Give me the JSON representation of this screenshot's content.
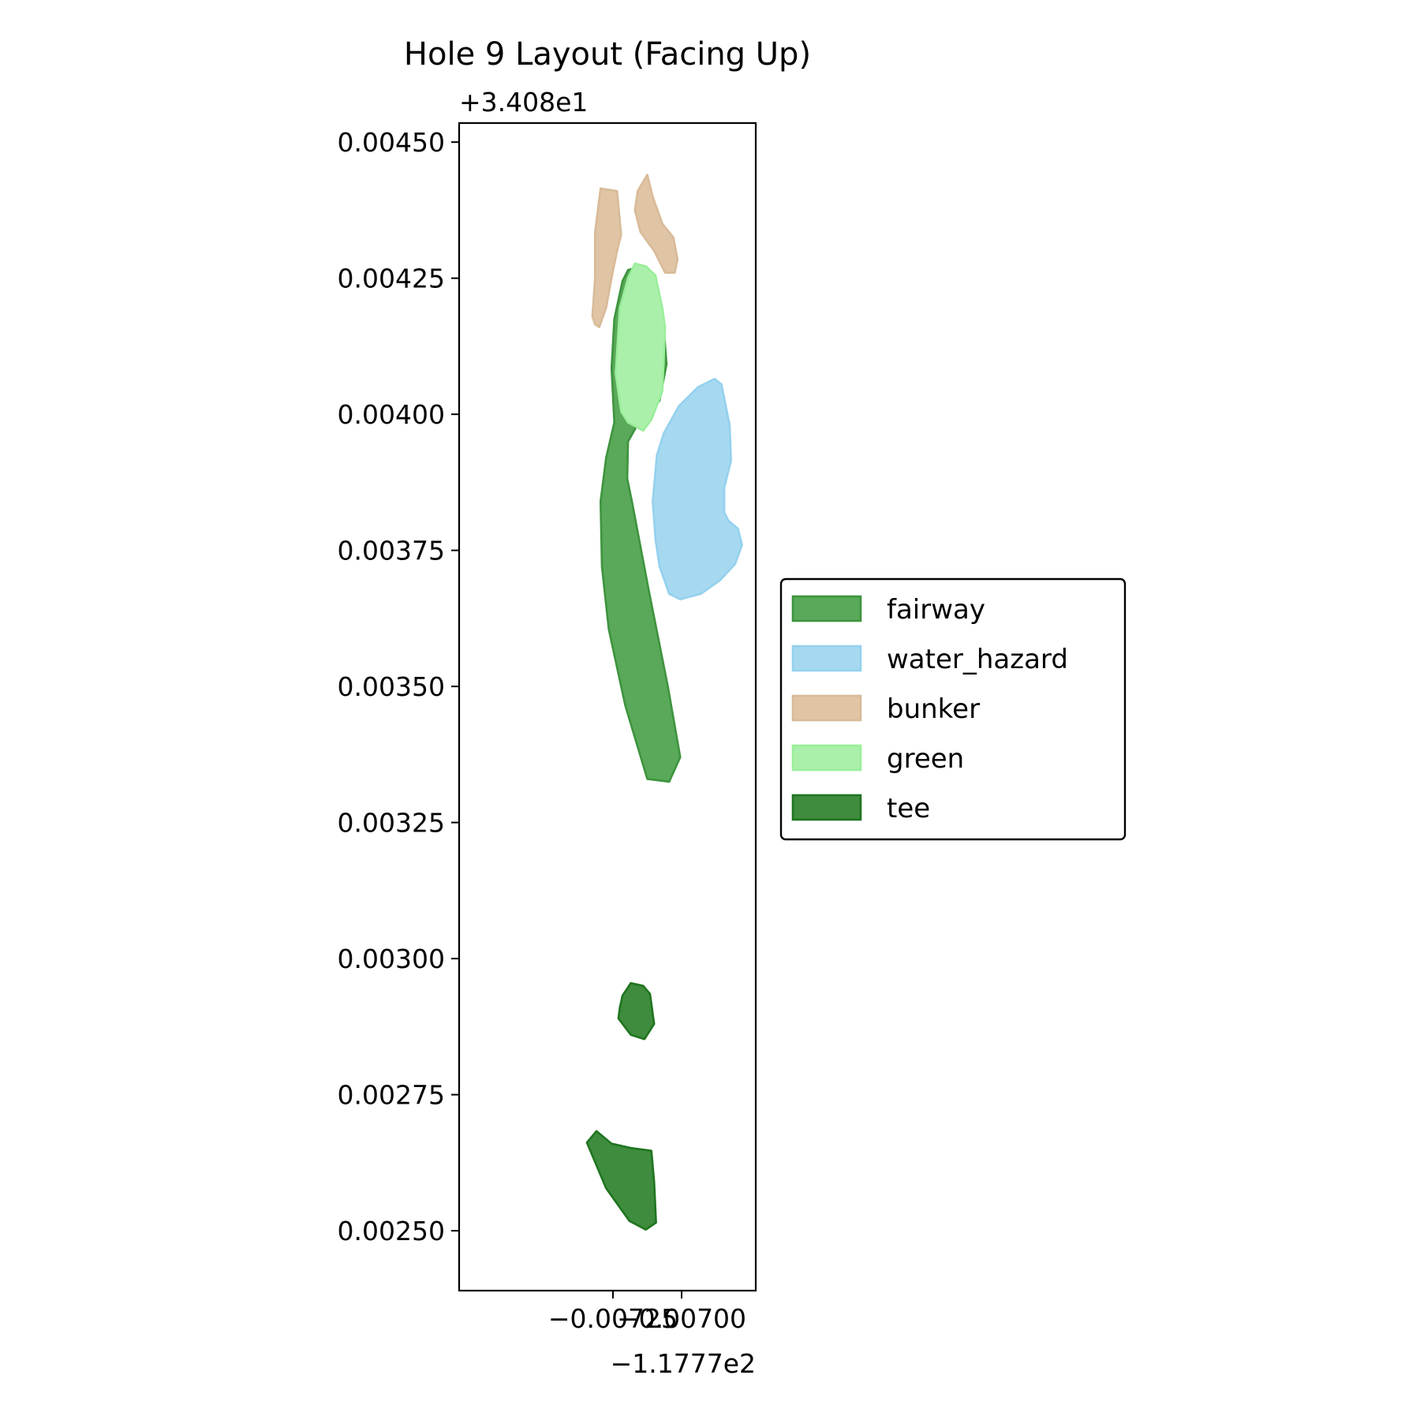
{
  "chart_data": {
    "type": "area",
    "title": "Hole 9 Layout (Facing Up)",
    "xlabel": "",
    "ylabel": "",
    "x_offset_label": "−1.1777e2",
    "y_offset_label": "+3.408e1",
    "xlim": [
      -0.00781,
      -0.00673
    ],
    "ylim": [
      0.00239,
      0.004535
    ],
    "x_ticks": [
      -0.00725,
      -0.007
    ],
    "x_tick_labels": [
      "−0.00725",
      "−0.00700"
    ],
    "y_ticks": [
      0.0025,
      0.00275,
      0.003,
      0.00325,
      0.0035,
      0.00375,
      0.004,
      0.00425,
      0.0045
    ],
    "y_tick_labels": [
      "0.00250",
      "0.00275",
      "0.00300",
      "0.00325",
      "0.00350",
      "0.00375",
      "0.00400",
      "0.00425",
      "0.00450"
    ],
    "grid": false,
    "legend_position": "center-right outside",
    "colors": {
      "fairway": "#2e8b2e",
      "water_hazard": "#87ceeb",
      "bunker": "#d2b48c",
      "green": "#90ee90",
      "tee": "#006400"
    },
    "legend": [
      {
        "name": "fairway",
        "fill": "#5aa85a",
        "stroke": "#3d943d"
      },
      {
        "name": "water_hazard",
        "fill": "#a6d9f0",
        "stroke": "#94d1ee"
      },
      {
        "name": "bunker",
        "fill": "#dfc5a6",
        "stroke": "#d8bb98"
      },
      {
        "name": "green",
        "fill": "#aaf0aa",
        "stroke": "#9aee9a"
      },
      {
        "name": "tee",
        "fill": "#3f8c3f",
        "stroke": "#1f751f"
      }
    ],
    "series": [
      {
        "name": "fairway",
        "fill": "#5aa85a",
        "stroke": "#3d943d",
        "polygons": [
          [
            [
              -0.007255,
              0.004085
            ],
            [
              -0.007245,
              0.004175
            ],
            [
              -0.007215,
              0.004245
            ],
            [
              -0.007195,
              0.004265
            ],
            [
              -0.007145,
              0.004272
            ],
            [
              -0.007095,
              0.00425
            ],
            [
              -0.007065,
              0.00416
            ],
            [
              -0.007055,
              0.004092
            ],
            [
              -0.00708,
              0.004025
            ],
            [
              -0.00715,
              0.00399
            ],
            [
              -0.007195,
              0.00395
            ],
            [
              -0.007198,
              0.003882
            ],
            [
              -0.00718,
              0.003838
            ],
            [
              -0.00712,
              0.003678
            ],
            [
              -0.00705,
              0.0035
            ],
            [
              -0.007005,
              0.00337
            ],
            [
              -0.007045,
              0.003325
            ],
            [
              -0.007125,
              0.00333
            ],
            [
              -0.007205,
              0.003465
            ],
            [
              -0.007265,
              0.003605
            ],
            [
              -0.00729,
              0.00372
            ],
            [
              -0.007295,
              0.00384
            ],
            [
              -0.007275,
              0.00392
            ],
            [
              -0.007245,
              0.003985
            ]
          ]
        ]
      },
      {
        "name": "water_hazard",
        "fill": "#a6d9f0",
        "stroke": "#94d1ee",
        "polygons": [
          [
            [
              -0.007105,
              0.00384
            ],
            [
              -0.00709,
              0.003925
            ],
            [
              -0.007065,
              0.003965
            ],
            [
              -0.00701,
              0.004015
            ],
            [
              -0.00694,
              0.00405
            ],
            [
              -0.00688,
              0.004065
            ],
            [
              -0.006855,
              0.004055
            ],
            [
              -0.006825,
              0.00398
            ],
            [
              -0.00682,
              0.003915
            ],
            [
              -0.006845,
              0.003865
            ],
            [
              -0.006845,
              0.00382
            ],
            [
              -0.00683,
              0.003805
            ],
            [
              -0.006795,
              0.00379
            ],
            [
              -0.00678,
              0.00376
            ],
            [
              -0.006805,
              0.003725
            ],
            [
              -0.00686,
              0.003695
            ],
            [
              -0.00693,
              0.00367
            ],
            [
              -0.007005,
              0.00366
            ],
            [
              -0.007045,
              0.00367
            ],
            [
              -0.00708,
              0.00372
            ],
            [
              -0.007095,
              0.00377
            ]
          ]
        ]
      },
      {
        "name": "bunker",
        "fill": "#dfc5a6",
        "stroke": "#d8bb98",
        "polygons": [
          [
            [
              -0.007325,
              0.00418
            ],
            [
              -0.00732,
              0.004215
            ],
            [
              -0.007315,
              0.00425
            ],
            [
              -0.007315,
              0.004335
            ],
            [
              -0.007295,
              0.004415
            ],
            [
              -0.007235,
              0.00441
            ],
            [
              -0.00722,
              0.00433
            ],
            [
              -0.007235,
              0.0043
            ],
            [
              -0.007255,
              0.00425
            ],
            [
              -0.007275,
              0.004195
            ],
            [
              -0.0073,
              0.00416
            ],
            [
              -0.007315,
              0.004165
            ]
          ],
          [
            [
              -0.00717,
              0.004375
            ],
            [
              -0.00716,
              0.00441
            ],
            [
              -0.007125,
              0.00444
            ],
            [
              -0.007105,
              0.0044
            ],
            [
              -0.00707,
              0.00435
            ],
            [
              -0.00703,
              0.004325
            ],
            [
              -0.007015,
              0.004285
            ],
            [
              -0.007025,
              0.00426
            ],
            [
              -0.00706,
              0.00426
            ],
            [
              -0.0071,
              0.0043
            ],
            [
              -0.00715,
              0.004335
            ]
          ]
        ]
      },
      {
        "name": "green",
        "fill": "#aaf0aa",
        "stroke": "#9aee9a",
        "polygons": [
          [
            [
              -0.00724,
              0.004075
            ],
            [
              -0.007225,
              0.004195
            ],
            [
              -0.007195,
              0.00425
            ],
            [
              -0.00717,
              0.004277
            ],
            [
              -0.00713,
              0.004272
            ],
            [
              -0.007095,
              0.004255
            ],
            [
              -0.00707,
              0.004195
            ],
            [
              -0.00706,
              0.00416
            ],
            [
              -0.00707,
              0.004042
            ],
            [
              -0.00711,
              0.00399
            ],
            [
              -0.00714,
              0.00397
            ],
            [
              -0.007195,
              0.003985
            ],
            [
              -0.00722,
              0.004005
            ]
          ]
        ]
      },
      {
        "name": "tee",
        "fill": "#3f8c3f",
        "stroke": "#1f751f",
        "polygons": [
          [
            [
              -0.007225,
              0.00291
            ],
            [
              -0.007215,
              0.002932
            ],
            [
              -0.007185,
              0.002955
            ],
            [
              -0.00714,
              0.00295
            ],
            [
              -0.007115,
              0.002935
            ],
            [
              -0.0071,
              0.00288
            ],
            [
              -0.007135,
              0.002852
            ],
            [
              -0.007185,
              0.00286
            ],
            [
              -0.00723,
              0.00289
            ]
          ],
          [
            [
              -0.007345,
              0.002662
            ],
            [
              -0.00731,
              0.002683
            ],
            [
              -0.007255,
              0.00266
            ],
            [
              -0.007185,
              0.002652
            ],
            [
              -0.00711,
              0.002647
            ],
            [
              -0.0071,
              0.00259
            ],
            [
              -0.007093,
              0.002515
            ],
            [
              -0.00713,
              0.002502
            ],
            [
              -0.00719,
              0.002518
            ],
            [
              -0.007275,
              0.002578
            ]
          ]
        ]
      }
    ]
  }
}
